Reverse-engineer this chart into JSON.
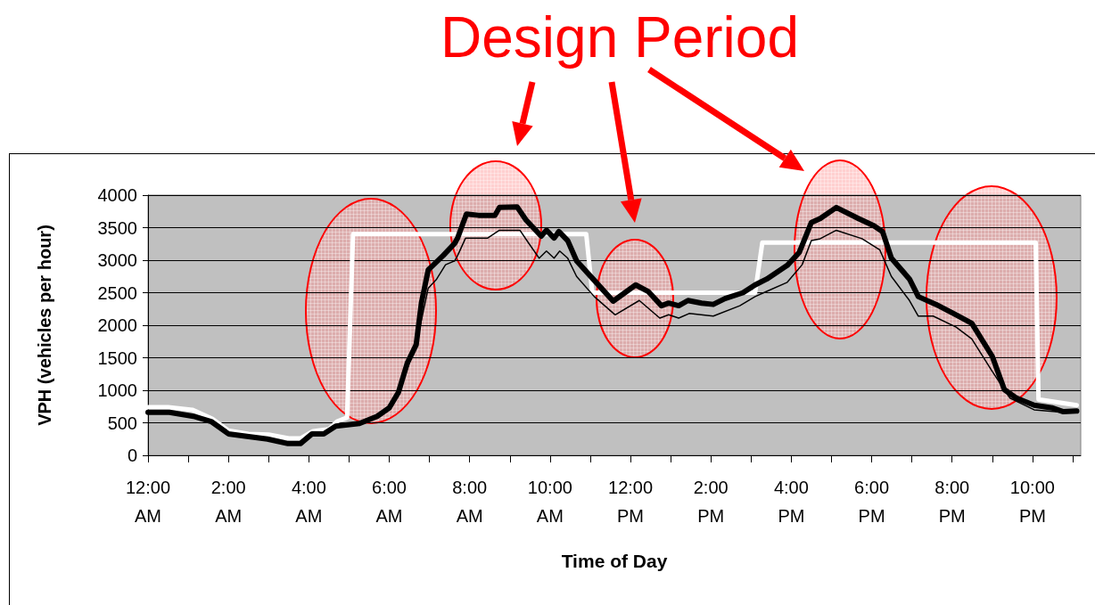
{
  "chart_data": {
    "type": "line",
    "xlabel": "Time of Day",
    "ylabel": "VPH (vehicles per hour)",
    "annotations": [
      "Design Period"
    ],
    "xlim": [
      0,
      23.2
    ],
    "ylim": [
      0,
      4000
    ],
    "xticks": [
      {
        "value": 0,
        "label": "12:00 AM"
      },
      {
        "value": 1,
        "label": null
      },
      {
        "value": 2,
        "label": "2:00 AM"
      },
      {
        "value": 3,
        "label": null
      },
      {
        "value": 4,
        "label": "4:00 AM"
      },
      {
        "value": 5,
        "label": null
      },
      {
        "value": 6,
        "label": "6:00 AM"
      },
      {
        "value": 7,
        "label": null
      },
      {
        "value": 8,
        "label": "8:00 AM"
      },
      {
        "value": 9,
        "label": null
      },
      {
        "value": 10,
        "label": "10:00 AM"
      },
      {
        "value": 11,
        "label": null
      },
      {
        "value": 12,
        "label": "12:00 PM"
      },
      {
        "value": 13,
        "label": null
      },
      {
        "value": 14,
        "label": "2:00 PM"
      },
      {
        "value": 15,
        "label": null
      },
      {
        "value": 16,
        "label": "4:00 PM"
      },
      {
        "value": 17,
        "label": null
      },
      {
        "value": 18,
        "label": "6:00 PM"
      },
      {
        "value": 19,
        "label": null
      },
      {
        "value": 20,
        "label": "8:00 PM"
      },
      {
        "value": 21,
        "label": null
      },
      {
        "value": 22,
        "label": "10:00 PM"
      },
      {
        "value": 23,
        "label": null
      }
    ],
    "yticks": [
      0,
      500,
      1000,
      1500,
      2000,
      2500,
      3000,
      3500,
      4000
    ],
    "grid": "y",
    "marker": "none",
    "line_style": "solid",
    "series": [
      {
        "color": "#ffffff",
        "x": [
          0,
          0.5,
          1.1,
          1.6,
          2.0,
          2.5,
          3.0,
          3.5,
          3.8,
          4.1,
          4.5,
          4.7,
          4.95,
          5.1,
          10.9,
          11.05,
          15.1,
          15.28,
          22.08,
          22.15,
          23.1
        ],
        "values": [
          740,
          740,
          700,
          560,
          380,
          330,
          320,
          260,
          260,
          370,
          400,
          520,
          580,
          3400,
          3400,
          2500,
          2500,
          3270,
          3270,
          860,
          770
        ]
      },
      {
        "color": "#000000",
        "x": [
          0,
          0.53,
          1.13,
          1.57,
          2.0,
          2.46,
          2.97,
          3.48,
          3.79,
          4.08,
          4.37,
          4.67,
          5.26,
          5.7,
          6.0,
          6.23,
          6.45,
          6.67,
          6.97,
          7.18,
          7.4,
          7.63,
          7.7,
          7.9,
          8.45,
          8.74,
          9.25,
          9.47,
          9.73,
          9.91,
          10.1,
          10.24,
          10.44,
          10.66,
          11.1,
          11.62,
          12.22,
          12.73,
          12.95,
          13.2,
          13.46,
          14.06,
          14.72,
          15.1,
          15.39,
          15.9,
          16.27,
          16.5,
          16.72,
          17.12,
          17.76,
          18.2,
          18.49,
          18.94,
          19.16,
          19.53,
          20.1,
          20.49,
          21.0,
          21.44,
          22.04,
          22.77,
          23.1
        ],
        "values": [
          640,
          640,
          590,
          510,
          320,
          280,
          240,
          170,
          170,
          320,
          320,
          440,
          480,
          590,
          720,
          960,
          1340,
          1700,
          2570,
          2710,
          2930,
          2990,
          3070,
          3340,
          3340,
          3460,
          3460,
          3260,
          3030,
          3140,
          3030,
          3140,
          3030,
          2750,
          2440,
          2160,
          2380,
          2110,
          2160,
          2110,
          2180,
          2140,
          2300,
          2440,
          2520,
          2660,
          2930,
          3300,
          3330,
          3460,
          3330,
          3160,
          2750,
          2380,
          2140,
          2140,
          1970,
          1790,
          1290,
          880,
          700,
          660,
          660
        ]
      },
      {
        "color": "#000000",
        "x": [
          0,
          0.53,
          1.13,
          1.57,
          2.0,
          2.46,
          2.97,
          3.48,
          3.79,
          4.08,
          4.37,
          4.67,
          5.26,
          5.7,
          6.0,
          6.23,
          6.45,
          6.67,
          6.8,
          6.97,
          7.34,
          7.63,
          7.7,
          7.92,
          8.22,
          8.63,
          8.74,
          9.18,
          9.4,
          9.78,
          9.91,
          10.1,
          10.22,
          10.44,
          10.66,
          11.1,
          11.57,
          12.13,
          12.44,
          12.77,
          12.95,
          13.2,
          13.43,
          13.77,
          14.06,
          14.35,
          14.8,
          15.1,
          15.39,
          15.9,
          16.2,
          16.5,
          16.72,
          17.12,
          17.67,
          18.05,
          18.27,
          18.49,
          18.94,
          19.16,
          19.6,
          20.1,
          20.49,
          21.0,
          21.3,
          21.6,
          22.04,
          22.48,
          22.77,
          23.1
        ],
        "values": [
          660,
          660,
          600,
          520,
          330,
          290,
          250,
          180,
          180,
          330,
          330,
          450,
          490,
          600,
          730,
          970,
          1420,
          1700,
          2340,
          2850,
          3070,
          3260,
          3340,
          3710,
          3690,
          3690,
          3810,
          3820,
          3620,
          3370,
          3460,
          3340,
          3440,
          3300,
          2990,
          2690,
          2370,
          2620,
          2520,
          2300,
          2340,
          2300,
          2380,
          2340,
          2320,
          2410,
          2500,
          2620,
          2710,
          2920,
          3120,
          3580,
          3640,
          3810,
          3640,
          3530,
          3440,
          3030,
          2710,
          2440,
          2320,
          2160,
          2030,
          1520,
          1010,
          880,
          770,
          730,
          670,
          680
        ]
      }
    ]
  }
}
